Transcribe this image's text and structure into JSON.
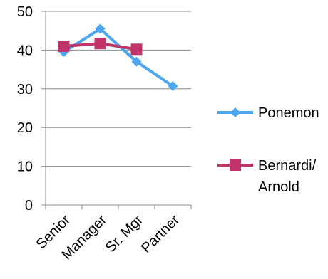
{
  "chart_data": {
    "type": "line",
    "title": "",
    "xlabel": "",
    "ylabel": "",
    "categories": [
      "Senior",
      "Manager",
      "Sr. Mgr",
      "Partner"
    ],
    "ylim": [
      0,
      50
    ],
    "yticks": [
      0,
      10,
      20,
      30,
      40,
      50
    ],
    "grid": true,
    "legend_position": "right",
    "series": [
      {
        "name": "Ponemon",
        "values": [
          39.5,
          45.5,
          37,
          30.7
        ],
        "color": "#4DA6F0",
        "marker": "diamond"
      },
      {
        "name": "Bernardi/\nArnold",
        "values": [
          41,
          41.7,
          40.2,
          null
        ],
        "color": "#C0346A",
        "marker": "square"
      }
    ]
  }
}
